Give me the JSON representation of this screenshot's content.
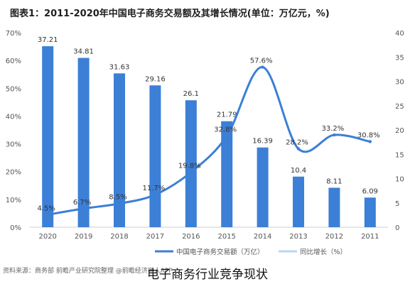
{
  "title": "图表1：2011-2020年中国电子商务交易额及其增长情况(单位：万亿元，%)",
  "source": "资料来源：商务部 前瞻产业研究院整理  @前瞻经济学人APP",
  "caption": "电子商务行业竞争现状",
  "colors": {
    "bar": "#3c7fd6",
    "line": "#3c7fd6",
    "text": "#333333"
  },
  "chart_data": {
    "type": "bar",
    "categories": [
      "2011",
      "2012",
      "2013",
      "2014",
      "2015",
      "2016",
      "2017",
      "2018",
      "2019",
      "2020"
    ],
    "series": [
      {
        "name": "中国电子商务交易额（万亿）",
        "type": "bar",
        "axis": "right",
        "values": [
          6.09,
          8.11,
          10.4,
          16.39,
          21.79,
          26.1,
          29.16,
          31.63,
          34.81,
          37.21
        ],
        "labels": [
          "6.09",
          "8.11",
          "10.4",
          "16.39",
          "21.79",
          "26.1",
          "29.16",
          "31.63",
          "34.81",
          "37.21"
        ]
      },
      {
        "name": "同比增长（%）",
        "type": "line",
        "axis": "left",
        "values": [
          30.8,
          33.2,
          28.2,
          57.6,
          32.8,
          19.8,
          11.7,
          8.5,
          6.7,
          4.5
        ],
        "labels": [
          "30.8%",
          "33.2%",
          "28.2%",
          "57.6%",
          "32.8%",
          "19.8%",
          "11.7%",
          "8.5%",
          "6.7%",
          "4.5%"
        ]
      }
    ],
    "left_axis": {
      "ylim": [
        0,
        70
      ],
      "ticks": [
        "0%",
        "10%",
        "20%",
        "30%",
        "40%",
        "50%",
        "60%",
        "70%"
      ]
    },
    "right_axis": {
      "ylim": [
        0,
        40
      ],
      "ticks": [
        "0",
        "5",
        "10",
        "15",
        "20",
        "25",
        "30",
        "35",
        "40"
      ]
    },
    "legend": [
      "中国电子商务交易额（万亿）",
      "同比增长（%）"
    ],
    "legend_position": "bottom",
    "x_direction": "descending",
    "grid": false
  }
}
